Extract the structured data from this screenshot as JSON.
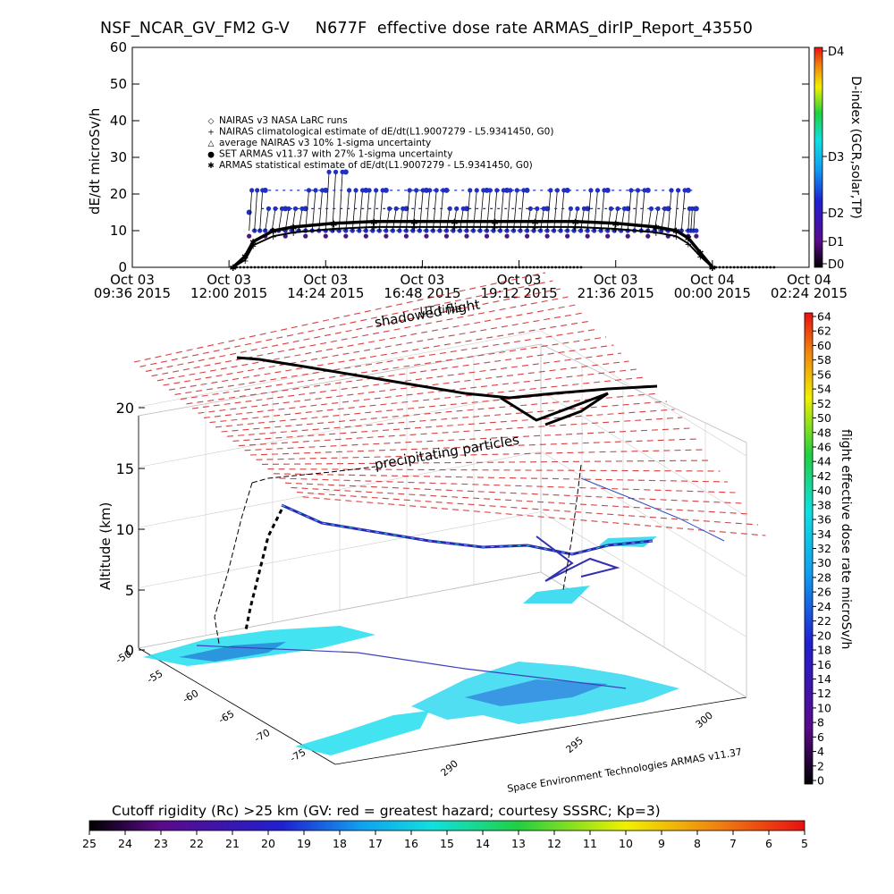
{
  "title": "NSF_NCAR_GV_FM2 G-V     N677F  effective dose rate ARMAS_dirIP_Report_43550",
  "chart_data": [
    {
      "type": "line",
      "ylabel": "dE/dt microSv/h",
      "ylim": [
        0,
        60
      ],
      "yticks": [
        "0",
        "10",
        "20",
        "30",
        "40",
        "50",
        "60"
      ],
      "xticks": [
        {
          "d": "Oct 03",
          "t": "09:36 2015"
        },
        {
          "d": "Oct 03",
          "t": "12:00 2015"
        },
        {
          "d": "Oct 03",
          "t": "14:24 2015"
        },
        {
          "d": "Oct 03",
          "t": "16:48 2015"
        },
        {
          "d": "Oct 03",
          "t": "19:12 2015"
        },
        {
          "d": "Oct 03",
          "t": "21:36 2015"
        },
        {
          "d": "Oct 04",
          "t": "00:00 2015"
        },
        {
          "d": "Oct 04",
          "t": "02:24 2015"
        }
      ],
      "x_hours": [
        0,
        2.4,
        4.8,
        7.2,
        9.6,
        12.0,
        14.4,
        16.8
      ],
      "legend": [
        "NAIRAS v3 NASA LaRC runs",
        "NAIRAS climatological estimate of dE/dt(L1.9007279 - L5.9341450, G0)",
        "average NAIRAS v3 10% 1-sigma uncertainty",
        "SET ARMAS v11.37 with 27% 1-sigma uncertainty",
        "ARMAS statistical estimate of dE/dt(L1.9007279 - L5.9341450, G0)"
      ],
      "legend_symbols": [
        "◇",
        "+",
        "△",
        "●",
        "✱"
      ],
      "dindex_label": "D-index (GCR,solar,TP)",
      "dindex_ticks": [
        "D4",
        "D3",
        "D2",
        "D1",
        "D0"
      ],
      "series": [
        {
          "name": "SET ARMAS v11.37 with 27% 1-sigma uncertainty",
          "x": [
            2.9,
            3.3,
            3.8,
            4.3,
            4.8,
            5.3,
            5.8,
            6.3,
            6.8,
            7.3,
            7.8,
            8.3,
            8.8,
            9.3,
            9.8,
            10.3,
            10.8,
            11.3,
            11.8,
            12.3,
            12.8,
            13.3,
            13.8,
            14.0
          ],
          "values": [
            15,
            21,
            16,
            16,
            21,
            26,
            21,
            21,
            16,
            21,
            21,
            16,
            21,
            21,
            21,
            16,
            21,
            16,
            21,
            16,
            21,
            16,
            21,
            16
          ]
        },
        {
          "name": "ARMAS statistical estimate of dE/dt(L1.9007279 - L5.9341450, G0)",
          "x": [
            2.5,
            2.8,
            3.0,
            3.5,
            4.0,
            5.0,
            6.0,
            7.0,
            8.0,
            9.0,
            10.0,
            11.0,
            12.0,
            13.0,
            13.5,
            13.8,
            14.1,
            14.4
          ],
          "values": [
            0,
            3,
            7,
            10,
            11,
            12,
            12.5,
            12.5,
            12.5,
            12.5,
            12.5,
            12.5,
            12,
            11,
            10,
            8,
            4,
            0
          ]
        },
        {
          "name": "NAIRAS climatological estimate of dE/dt(L1.9007279 - L5.9341450, G0)",
          "x": [
            2.5,
            2.8,
            3.0,
            3.5,
            4.0,
            5.0,
            6.0,
            7.0,
            8.0,
            9.0,
            10.0,
            11.0,
            12.0,
            13.0,
            13.5,
            13.8,
            14.1,
            14.4
          ],
          "values": [
            0,
            2,
            6,
            8.5,
            9.5,
            10.5,
            11,
            11,
            11,
            11,
            11,
            11,
            10.5,
            9.5,
            8.5,
            6.5,
            3,
            0
          ]
        }
      ]
    },
    {
      "type": "scatter",
      "zlabel": "Altitude (km)",
      "zticks": [
        "0",
        "5",
        "10",
        "15",
        "20"
      ],
      "lat_ticks": [
        "-50",
        "-55",
        "-60",
        "-65",
        "-70",
        "-75"
      ],
      "lon_ticks": [
        "290",
        "295",
        "300"
      ],
      "annotations": [
        "shadowed flight",
        "UT time",
        "precipitating particles"
      ],
      "credit": "Space Environment Technologies ARMAS v11.37",
      "colorbar_label": "flight effective dose rate microSv/h",
      "colorbar_ticks": [
        "64",
        "62",
        "60",
        "58",
        "56",
        "54",
        "52",
        "50",
        "48",
        "46",
        "44",
        "42",
        "40",
        "38",
        "36",
        "34",
        "32",
        "30",
        "28",
        "26",
        "24",
        "22",
        "20",
        "18",
        "16",
        "14",
        "12",
        "10",
        "8",
        "6",
        "4",
        "2",
        "0"
      ]
    },
    {
      "type": "heatmap",
      "title": "Cutoff rigidity (Rc) >25 km (GV: red = greatest hazard; courtesy SSSRC; Kp=3)",
      "ticks": [
        "25",
        "24",
        "23",
        "22",
        "21",
        "20",
        "19",
        "18",
        "17",
        "16",
        "15",
        "14",
        "13",
        "12",
        "11",
        "10",
        "9",
        "8",
        "7",
        "6",
        "5"
      ]
    }
  ]
}
